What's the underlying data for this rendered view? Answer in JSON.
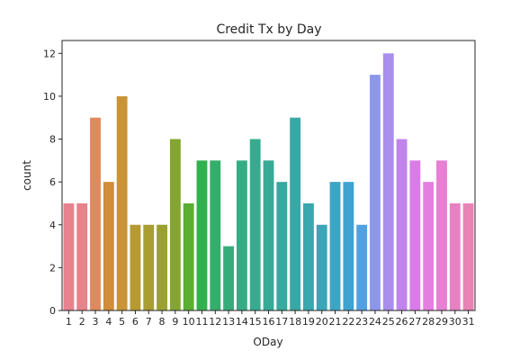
{
  "chart_data": {
    "type": "bar",
    "title": "Credit Tx by Day",
    "xlabel": "ODay",
    "ylabel": "count",
    "categories": [
      "1",
      "2",
      "3",
      "4",
      "5",
      "6",
      "7",
      "8",
      "9",
      "10",
      "11",
      "12",
      "13",
      "14",
      "15",
      "16",
      "17",
      "18",
      "19",
      "20",
      "21",
      "22",
      "23",
      "24",
      "25",
      "26",
      "27",
      "28",
      "29",
      "30",
      "31"
    ],
    "values": [
      5,
      5,
      9,
      6,
      10,
      4,
      4,
      4,
      8,
      5,
      7,
      7,
      3,
      7,
      8,
      7,
      6,
      9,
      5,
      4,
      6,
      6,
      4,
      11,
      12,
      8,
      7,
      6,
      7,
      5,
      5
    ],
    "ylim": [
      0,
      12.6
    ],
    "yticks": [
      0,
      2,
      4,
      6,
      8,
      10,
      12
    ],
    "grid": false,
    "colors": [
      "#e8828e",
      "#e7838a",
      "#df8a5e",
      "#d18d39",
      "#c99437",
      "#b79b32",
      "#a89e31",
      "#9aa131",
      "#84a631",
      "#5aae31",
      "#32b04e",
      "#34ae6b",
      "#35ad7a",
      "#35ac84",
      "#36ab8d",
      "#37aa96",
      "#37a99e",
      "#38a8a6",
      "#39a7ae",
      "#3aa6b8",
      "#3ca5c3",
      "#3fa3d1",
      "#52a0e0",
      "#8c97ec",
      "#a98eed",
      "#c184ec",
      "#d97cea",
      "#e57ee1",
      "#e77fd2",
      "#e781c4",
      "#e883b5"
    ]
  }
}
